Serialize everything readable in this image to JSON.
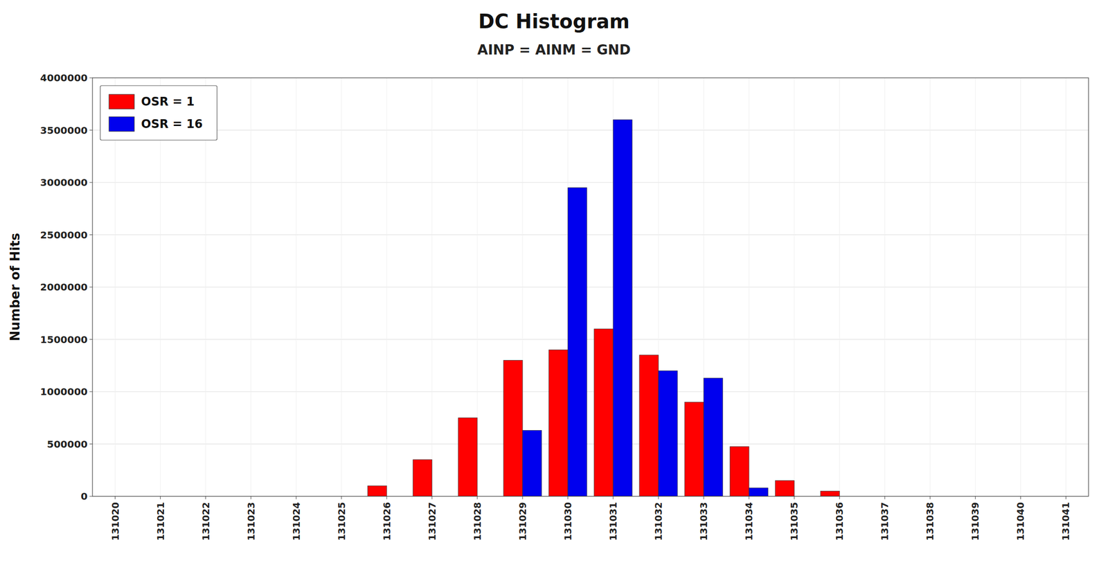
{
  "chart_data": {
    "type": "bar",
    "title": "DC Histogram",
    "subtitle": "AINP = AINM = GND",
    "ylabel": "Number of Hits",
    "categories": [
      131020,
      131021,
      131022,
      131023,
      131024,
      131025,
      131026,
      131027,
      131028,
      131029,
      131030,
      131031,
      131032,
      131033,
      131034,
      131035,
      131036,
      131037,
      131038,
      131039,
      131040,
      131041
    ],
    "series": [
      {
        "name": "OSR = 1",
        "color": "#FF0000",
        "values": [
          0,
          0,
          0,
          0,
          0,
          0,
          100000,
          350000,
          750000,
          1300000,
          1400000,
          1600000,
          1350000,
          900000,
          475000,
          150000,
          50000,
          0,
          0,
          0,
          0,
          0
        ]
      },
      {
        "name": "OSR = 16",
        "color": "#0000EE",
        "values": [
          0,
          0,
          0,
          0,
          0,
          0,
          0,
          0,
          0,
          630000,
          2950000,
          3600000,
          1200000,
          1130000,
          80000,
          0,
          0,
          0,
          0,
          0,
          0,
          0
        ]
      }
    ],
    "ylim": [
      0,
      4000000
    ],
    "yticks": [
      0,
      500000,
      1000000,
      1500000,
      2000000,
      2500000,
      3000000,
      3500000,
      4000000
    ],
    "grid": true,
    "legend": "upper left"
  }
}
